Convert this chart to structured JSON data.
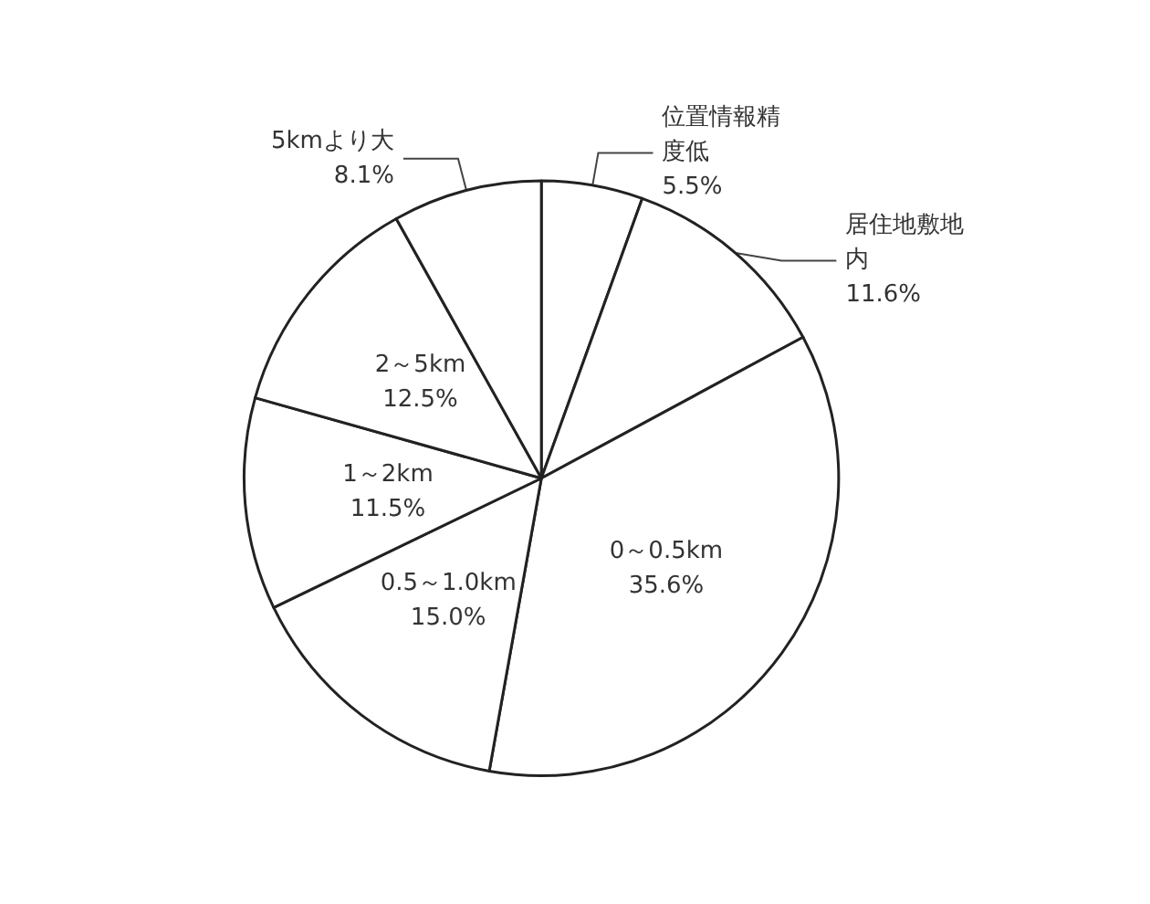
{
  "chart_data": {
    "type": "pie",
    "categories": [
      "位置情報精度低",
      "居住地敷地内",
      "0～0.5km",
      "0.5～1.0km",
      "1～2km",
      "2～5km",
      "5kmより大"
    ],
    "values": [
      5.5,
      11.6,
      35.6,
      15.0,
      11.5,
      12.5,
      8.1
    ],
    "value_labels": [
      "5.5%",
      "11.6%",
      "35.6%",
      "15.0%",
      "11.5%",
      "12.5%",
      "8.1%"
    ],
    "colors": [
      "#ffffff",
      "#ffffff",
      "#ffffff",
      "#ffffff",
      "#ffffff",
      "#ffffff",
      "#ffffff"
    ],
    "legend": false
  }
}
